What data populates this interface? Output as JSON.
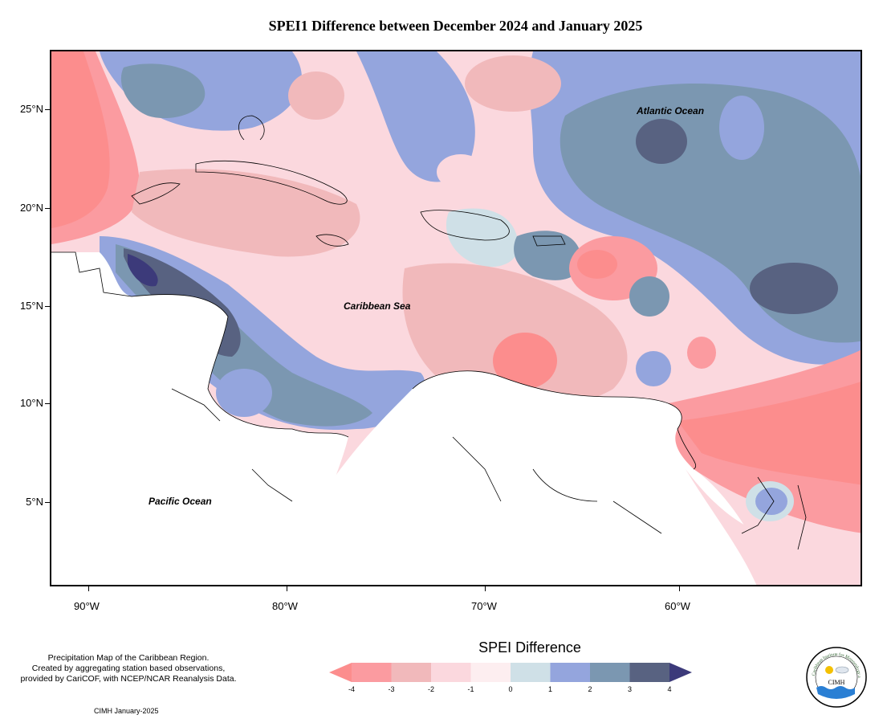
{
  "title": "SPEI1 Difference between December 2024 and January 2025",
  "axes": {
    "lat_labels": [
      "25°N",
      "20°N",
      "15°N",
      "10°N",
      "5°N"
    ],
    "lon_labels": [
      "90°W",
      "80°W",
      "70°W",
      "60°W"
    ]
  },
  "places": {
    "atlantic": "Atlantic Ocean",
    "caribbean": "Caribbean Sea",
    "pacific": "Pacific Ocean"
  },
  "legend": {
    "title": "SPEI Difference",
    "ticks": [
      "-4",
      "-3",
      "-2",
      "-1",
      "0",
      "1",
      "2",
      "3",
      "4"
    ],
    "colors": [
      "#fc8d8d",
      "#fb9ba0",
      "#f1b9bb",
      "#fbd8de",
      "#fdeef0",
      "#cfe0e7",
      "#94a5dd",
      "#7b97b1",
      "#586281",
      "#3c3a7a"
    ]
  },
  "notes": {
    "line1": "Precipitation Map of the Caribbean Region.",
    "line2": "Created by aggregating station based observations,",
    "line3": "provided by CariCOF, with NCEP/NCAR Reanalysis Data.",
    "credit": "CIMH January-2025"
  },
  "logo": {
    "acronym": "CIMH",
    "arc_text": "Caribbean Institute for Meteorology and Hydrology"
  }
}
